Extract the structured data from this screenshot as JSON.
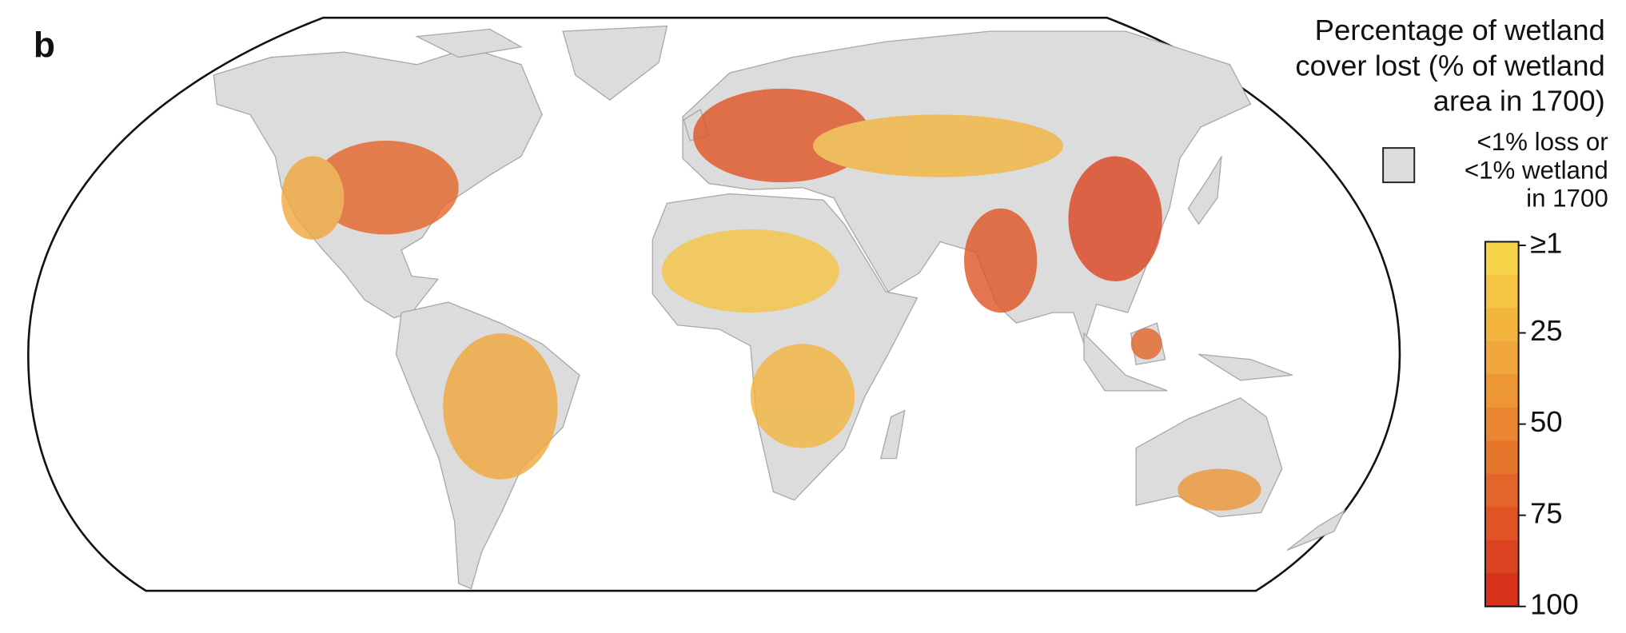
{
  "panel_label": "b",
  "legend": {
    "title_lines": [
      "Percentage of wetland",
      "cover lost (% of wetland",
      "area in 1700)"
    ],
    "no_data_lines": [
      "<1% loss or",
      "<1% wetland",
      "in 1700"
    ],
    "no_data_color": "#dcdcdc",
    "colorbar": {
      "lim": [
        0,
        100
      ],
      "ticks": [
        {
          "value": 1,
          "label": "≥1"
        },
        25,
        50,
        75,
        100
      ],
      "colors": [
        "#f8d448",
        "#f6c443",
        "#f3b53e",
        "#f0a63a",
        "#ed9636",
        "#ea8631",
        "#e7762d",
        "#e46529",
        "#e05424",
        "#dc4320",
        "#d8321c"
      ]
    }
  }
}
